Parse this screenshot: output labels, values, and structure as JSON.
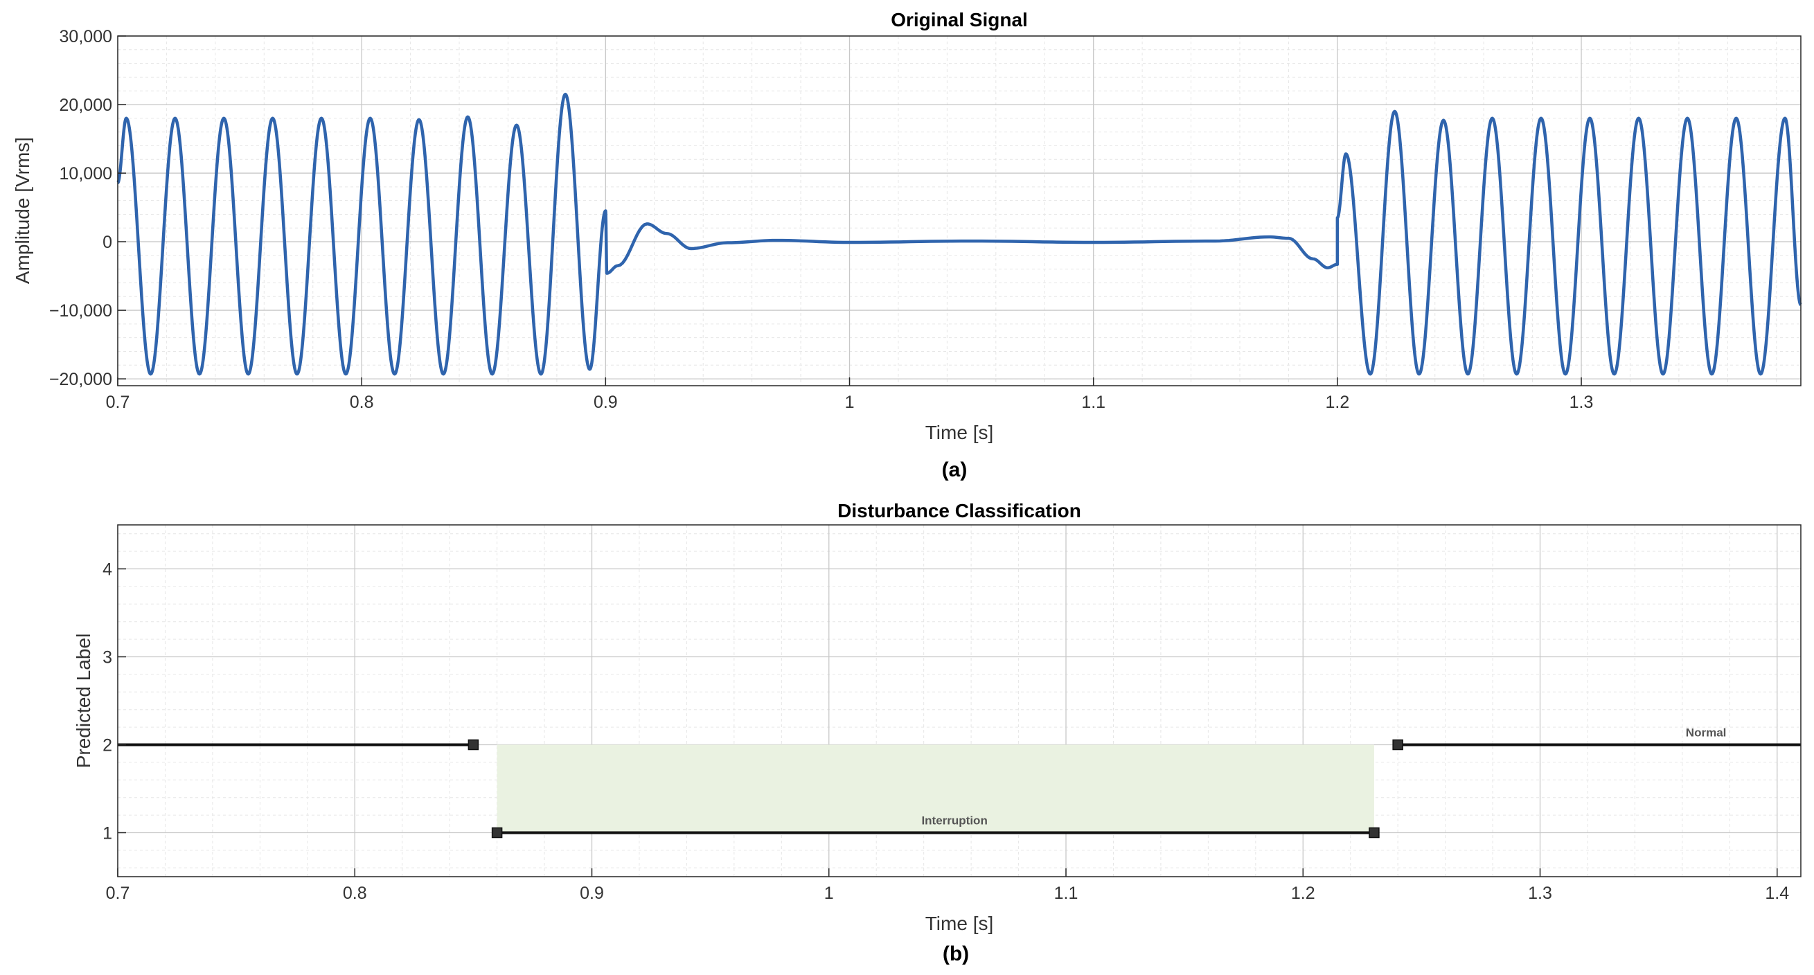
{
  "chart_data": [
    {
      "type": "line",
      "title": "Original Signal",
      "xlabel": "Time [s]",
      "ylabel": "Amplitude [Vrms]",
      "caption": "(a)",
      "xlim": [
        0.7,
        1.39
      ],
      "ylim": [
        -21000,
        30000
      ],
      "xticks": [
        0.7,
        0.8,
        0.9,
        1,
        1.1,
        1.2,
        1.3
      ],
      "xtick_labels": [
        "0.7",
        "0.8",
        "0.9",
        "1",
        "1.1",
        "1.2",
        "1.3"
      ],
      "yticks": [
        -20000,
        -10000,
        0,
        10000,
        20000,
        30000
      ],
      "ytick_labels": [
        "−20,000",
        "−10,000",
        "0",
        "10,000",
        "20,000",
        "30,000"
      ],
      "grid": true,
      "minor_grid": true,
      "series": [
        {
          "color": "#2f64ad",
          "frequency_hz": 50,
          "segments": [
            {
              "start": 0.7,
              "end": 0.9,
              "form": "sine",
              "amplitude": 18500,
              "offset": -650,
              "peaks": [
                [
                  0.7035,
                  18000
                ],
                [
                  0.7235,
                  18000
                ],
                [
                  0.7435,
                  18000
                ],
                [
                  0.7635,
                  18000
                ],
                [
                  0.7835,
                  18000
                ],
                [
                  0.8035,
                  18000
                ],
                [
                  0.8235,
                  17800
                ],
                [
                  0.8435,
                  18200
                ],
                [
                  0.8635,
                  17000
                ],
                [
                  0.8835,
                  21500
                ]
              ],
              "troughs": [
                [
                  0.7135,
                  -19300
                ],
                [
                  0.7335,
                  -19300
                ],
                [
                  0.7535,
                  -19300
                ],
                [
                  0.7735,
                  -19300
                ],
                [
                  0.7935,
                  -19300
                ],
                [
                  0.8135,
                  -19300
                ],
                [
                  0.8335,
                  -19300
                ],
                [
                  0.8535,
                  -19300
                ],
                [
                  0.8735,
                  -19300
                ],
                [
                  0.8935,
                  -18600
                ]
              ],
              "start_value": 8600,
              "end_value": 4500
            },
            {
              "start": 0.9,
              "end": 1.2,
              "form": "transient",
              "points": [
                [
                  0.9,
                  4500
                ],
                [
                  0.9005,
                  -4600
                ],
                [
                  0.905,
                  -3500
                ],
                [
                  0.917,
                  2600
                ],
                [
                  0.925,
                  1200
                ],
                [
                  0.935,
                  -1000
                ],
                [
                  0.95,
                  -150
                ],
                [
                  0.97,
                  200
                ],
                [
                  1.0,
                  -100
                ],
                [
                  1.05,
                  100
                ],
                [
                  1.1,
                  -100
                ],
                [
                  1.15,
                  100
                ],
                [
                  1.172,
                  700
                ],
                [
                  1.18,
                  500
                ],
                [
                  1.19,
                  -2500
                ],
                [
                  1.196,
                  -3800
                ],
                [
                  1.2,
                  -3300
                ]
              ]
            },
            {
              "start": 1.2,
              "end": 1.39,
              "form": "sine",
              "amplitude": 18500,
              "offset": -650,
              "peaks": [
                [
                  1.2035,
                  12800
                ],
                [
                  1.2235,
                  19000
                ],
                [
                  1.2435,
                  17700
                ],
                [
                  1.2635,
                  18000
                ],
                [
                  1.2835,
                  18000
                ],
                [
                  1.3035,
                  18000
                ],
                [
                  1.3235,
                  18000
                ],
                [
                  1.3435,
                  18000
                ],
                [
                  1.3635,
                  18000
                ],
                [
                  1.3835,
                  18000
                ]
              ],
              "troughs": [
                [
                  1.2135,
                  -19300
                ],
                [
                  1.2335,
                  -19300
                ],
                [
                  1.2535,
                  -19300
                ],
                [
                  1.2735,
                  -19300
                ],
                [
                  1.2935,
                  -19300
                ],
                [
                  1.3135,
                  -19300
                ],
                [
                  1.3335,
                  -19300
                ],
                [
                  1.3535,
                  -19300
                ],
                [
                  1.3735,
                  -19300
                ]
              ],
              "start_value": 3500,
              "end_value": -9200
            }
          ]
        }
      ]
    },
    {
      "type": "line",
      "title": "Disturbance Classification",
      "xlabel": "Time [s]",
      "ylabel": "Predicted Label",
      "caption": "(b)",
      "xlim": [
        0.7,
        1.41
      ],
      "ylim": [
        0.5,
        4.5
      ],
      "xticks": [
        0.7,
        0.8,
        0.9,
        1,
        1.1,
        1.2,
        1.3,
        1.4
      ],
      "xtick_labels": [
        "0.7",
        "0.8",
        "0.9",
        "1",
        "1.1",
        "1.2",
        "1.3",
        "1.4"
      ],
      "yticks": [
        1,
        2,
        3,
        4
      ],
      "ytick_labels": [
        "1",
        "2",
        "3",
        "4"
      ],
      "grid": true,
      "minor_grid": true,
      "segments": [
        {
          "x": [
            0.7,
            0.85
          ],
          "y": 2,
          "markers": [
            0.85
          ],
          "color": "#111111"
        },
        {
          "x": [
            0.86,
            1.23
          ],
          "y": 1,
          "markers": [
            0.86,
            1.23
          ],
          "color": "#111111",
          "label": "Interruption",
          "label_x": 1.053
        },
        {
          "x": [
            1.24,
            1.41
          ],
          "y": 2,
          "markers": [
            1.24
          ],
          "color": "#111111",
          "label": "Normal",
          "label_x": 1.37
        }
      ],
      "shaded_region": {
        "x": [
          0.86,
          1.23
        ],
        "y": [
          1,
          2
        ],
        "color": "#eaf2e1"
      }
    }
  ]
}
